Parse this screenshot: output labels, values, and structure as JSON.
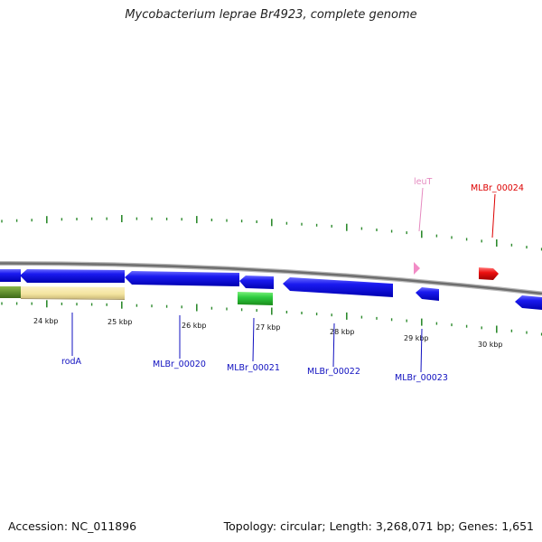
{
  "header": {
    "title": "Mycobacterium leprae Br4923, complete genome"
  },
  "footer": {
    "accession": "Accession: NC_011896",
    "summary": "Topology: circular; Length: 3,268,071 bp; Genes: 1,651"
  },
  "colors": {
    "backbone": "#7a7a7a",
    "tick": "#2e8b2e",
    "gene_blue": "#1010e8",
    "gene_green": "#2ecc40",
    "gene_pink": "#f28cc6",
    "gene_red": "#ee1111",
    "tan": "#f3e4a0",
    "olive": "#5a8a2a",
    "label_blue": "#1010c0",
    "label_pink": "#e58ac0",
    "label_red": "#dd0000"
  },
  "scale_labels": [
    "24 kbp",
    "25 kbp",
    "26 kbp",
    "27 kbp",
    "28 kbp",
    "29 kbp",
    "30 kbp"
  ],
  "gene_labels": [
    {
      "text": "rodA",
      "color": "label_blue"
    },
    {
      "text": "MLBr_00020",
      "color": "label_blue"
    },
    {
      "text": "MLBr_00021",
      "color": "label_blue"
    },
    {
      "text": "MLBr_00022",
      "color": "label_blue"
    },
    {
      "text": "MLBr_00023",
      "color": "label_blue"
    },
    {
      "text": "leuT",
      "color": "label_pink"
    },
    {
      "text": "MLBr_00024",
      "color": "label_red"
    }
  ]
}
